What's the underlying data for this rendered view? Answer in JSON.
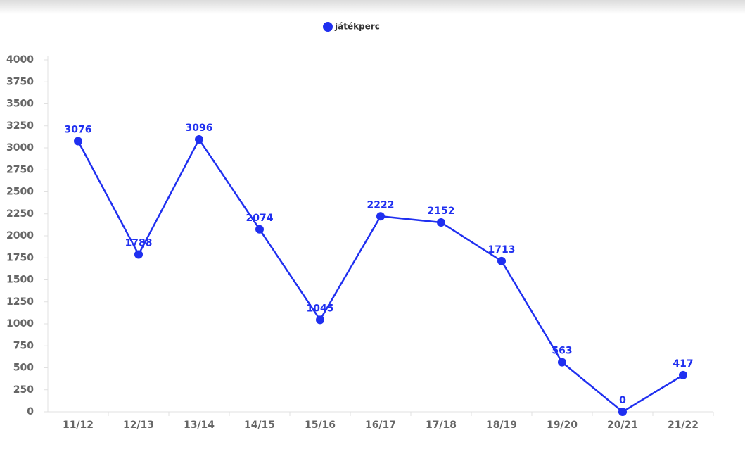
{
  "chart_data": {
    "type": "line",
    "categories": [
      "11/12",
      "12/13",
      "13/14",
      "14/15",
      "15/16",
      "16/17",
      "17/18",
      "18/19",
      "19/20",
      "20/21",
      "21/22"
    ],
    "series": [
      {
        "name": "játékperc",
        "color": "#1f2ff0",
        "values": [
          3076,
          1788,
          3096,
          2074,
          1045,
          2222,
          2152,
          1713,
          563,
          0,
          417
        ]
      }
    ],
    "ylim": [
      0,
      4000
    ],
    "yticks": [
      0,
      250,
      500,
      750,
      1000,
      1250,
      1500,
      1750,
      2000,
      2250,
      2500,
      2750,
      3000,
      3250,
      3500,
      3750,
      4000
    ],
    "grid": false,
    "legend": "top"
  }
}
